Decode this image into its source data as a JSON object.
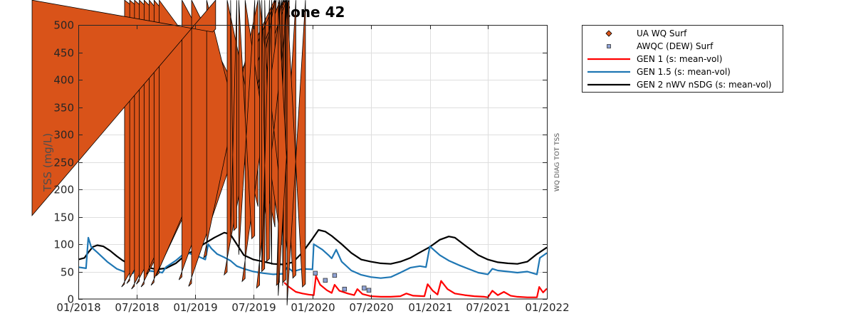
{
  "chart_data": {
    "type": "line",
    "title": "Zone 42",
    "ylabel": "TSS (mg/L)",
    "side_label": "WQ DIAG TOT TSS",
    "xlim": [
      "2018-01-01",
      "2022-01-01"
    ],
    "ylim": [
      0,
      500
    ],
    "grid": true,
    "legend_position": "outside-top-right",
    "x_ticks": [
      "01/2018",
      "07/2018",
      "01/2019",
      "07/2019",
      "01/2020",
      "07/2020",
      "01/2021",
      "07/2021",
      "01/2022"
    ],
    "y_ticks": [
      "0",
      "50",
      "100",
      "150",
      "200",
      "250",
      "300",
      "350",
      "400",
      "450",
      "500"
    ],
    "legend": [
      {
        "label": "UA WQ Surf",
        "marker": "diamond",
        "color": "#d95319"
      },
      {
        "label": "AWQC (DEW) Surf",
        "marker": "square",
        "color": "#7c8fbf"
      },
      {
        "label": "GEN 1 (s: mean-vol)",
        "marker": "line",
        "color": "#ff0000"
      },
      {
        "label": "GEN 1.5 (s: mean-vol)",
        "marker": "line",
        "color": "#1f77b4"
      },
      {
        "label": "GEN 2 nWV nSDG (s: mean-vol)",
        "marker": "line",
        "color": "#000000"
      }
    ],
    "scatter_series": [
      {
        "name": "UA WQ Surf",
        "points": [
          {
            "x": "2018-05-25",
            "y": 22
          },
          {
            "x": "2018-06-10",
            "y": 28
          },
          {
            "x": "2018-06-25",
            "y": 18
          },
          {
            "x": "2018-07-10",
            "y": 27
          },
          {
            "x": "2018-07-25",
            "y": 22
          },
          {
            "x": "2018-08-10",
            "y": 45
          },
          {
            "x": "2018-08-25",
            "y": 25
          },
          {
            "x": "2018-09-10",
            "y": 42
          },
          {
            "x": "2018-11-20",
            "y": 35
          },
          {
            "x": "2018-12-20",
            "y": 23
          },
          {
            "x": "2019-02-05",
            "y": 75
          },
          {
            "x": "2019-03-05",
            "y": 487
          },
          {
            "x": "2019-04-10",
            "y": 44
          },
          {
            "x": "2019-05-10",
            "y": 125
          },
          {
            "x": "2019-06-05",
            "y": 32
          },
          {
            "x": "2019-07-05",
            "y": 110
          },
          {
            "x": "2019-07-20",
            "y": 20
          },
          {
            "x": "2019-08-05",
            "y": 50
          },
          {
            "x": "2019-08-20",
            "y": 68
          },
          {
            "x": "2019-09-20",
            "y": 25
          },
          {
            "x": "2019-10-10",
            "y": 30
          },
          {
            "x": "2019-11-10",
            "y": 38
          },
          {
            "x": "2019-12-10",
            "y": 22
          }
        ]
      },
      {
        "name": "AWQC (DEW) Surf",
        "points": [
          {
            "x": "2020-01-10",
            "y": 47
          },
          {
            "x": "2020-02-10",
            "y": 34
          },
          {
            "x": "2020-03-10",
            "y": 43
          },
          {
            "x": "2020-04-10",
            "y": 18
          },
          {
            "x": "2020-06-10",
            "y": 20
          },
          {
            "x": "2020-06-25",
            "y": 16
          }
        ]
      }
    ],
    "line_series": [
      {
        "name": "GEN 2 nWV nSDG (s: mean-vol)",
        "color": "#000000",
        "points": [
          [
            "2018-01-01",
            72
          ],
          [
            "2018-01-20",
            75
          ],
          [
            "2018-02-01",
            85
          ],
          [
            "2018-02-15",
            95
          ],
          [
            "2018-03-01",
            98
          ],
          [
            "2018-03-20",
            96
          ],
          [
            "2018-04-10",
            88
          ],
          [
            "2018-05-01",
            78
          ],
          [
            "2018-05-20",
            70
          ],
          [
            "2018-06-10",
            63
          ],
          [
            "2018-07-01",
            60
          ],
          [
            "2018-07-20",
            60
          ],
          [
            "2018-08-10",
            57
          ],
          [
            "2018-09-01",
            54
          ],
          [
            "2018-10-01",
            56
          ],
          [
            "2018-11-01",
            65
          ],
          [
            "2018-12-01",
            80
          ],
          [
            "2019-01-01",
            90
          ],
          [
            "2019-02-01",
            102
          ],
          [
            "2019-03-01",
            112
          ],
          [
            "2019-04-01",
            121
          ],
          [
            "2019-04-20",
            118
          ],
          [
            "2019-05-10",
            100
          ],
          [
            "2019-06-01",
            80
          ],
          [
            "2019-07-01",
            72
          ],
          [
            "2019-08-01",
            68
          ],
          [
            "2019-09-01",
            64
          ],
          [
            "2019-10-01",
            63
          ],
          [
            "2019-11-01",
            67
          ],
          [
            "2019-12-01",
            85
          ],
          [
            "2020-01-01",
            110
          ],
          [
            "2020-01-20",
            126
          ],
          [
            "2020-02-10",
            123
          ],
          [
            "2020-03-01",
            115
          ],
          [
            "2020-04-01",
            100
          ],
          [
            "2020-05-01",
            84
          ],
          [
            "2020-06-01",
            72
          ],
          [
            "2020-07-01",
            68
          ],
          [
            "2020-08-01",
            65
          ],
          [
            "2020-09-01",
            64
          ],
          [
            "2020-10-01",
            68
          ],
          [
            "2020-11-01",
            75
          ],
          [
            "2020-12-01",
            85
          ],
          [
            "2021-01-01",
            95
          ],
          [
            "2021-02-01",
            108
          ],
          [
            "2021-03-01",
            114
          ],
          [
            "2021-03-20",
            112
          ],
          [
            "2021-04-20",
            98
          ],
          [
            "2021-06-01",
            80
          ],
          [
            "2021-07-01",
            72
          ],
          [
            "2021-08-01",
            67
          ],
          [
            "2021-09-01",
            65
          ],
          [
            "2021-10-01",
            64
          ],
          [
            "2021-11-01",
            68
          ],
          [
            "2021-12-01",
            82
          ],
          [
            "2022-01-01",
            94
          ]
        ]
      },
      {
        "name": "GEN 1.5 (s: mean-vol)",
        "color": "#1f77b4",
        "points": [
          [
            "2018-01-01",
            58
          ],
          [
            "2018-01-25",
            56
          ],
          [
            "2018-02-01",
            112
          ],
          [
            "2018-02-10",
            95
          ],
          [
            "2018-03-01",
            85
          ],
          [
            "2018-04-01",
            68
          ],
          [
            "2018-05-01",
            55
          ],
          [
            "2018-06-01",
            48
          ],
          [
            "2018-06-20",
            47
          ],
          [
            "2018-07-01",
            62
          ],
          [
            "2018-07-10",
            55
          ],
          [
            "2018-08-01",
            52
          ],
          [
            "2018-09-01",
            50
          ],
          [
            "2018-09-20",
            48
          ],
          [
            "2018-10-01",
            58
          ],
          [
            "2018-11-01",
            70
          ],
          [
            "2018-12-01",
            85
          ],
          [
            "2019-01-01",
            80
          ],
          [
            "2019-02-01",
            72
          ],
          [
            "2019-02-10",
            100
          ],
          [
            "2019-02-20",
            92
          ],
          [
            "2019-03-10",
            82
          ],
          [
            "2019-04-01",
            76
          ],
          [
            "2019-04-20",
            70
          ],
          [
            "2019-05-10",
            60
          ],
          [
            "2019-06-01",
            55
          ],
          [
            "2019-07-01",
            50
          ],
          [
            "2019-08-01",
            47
          ],
          [
            "2019-09-01",
            45
          ],
          [
            "2019-10-01",
            46
          ],
          [
            "2019-10-15",
            58
          ],
          [
            "2019-11-01",
            50
          ],
          [
            "2019-12-01",
            55
          ],
          [
            "2020-01-01",
            54
          ],
          [
            "2020-01-05",
            100
          ],
          [
            "2020-02-01",
            90
          ],
          [
            "2020-02-20",
            80
          ],
          [
            "2020-03-01",
            74
          ],
          [
            "2020-03-15",
            90
          ],
          [
            "2020-04-01",
            68
          ],
          [
            "2020-05-01",
            52
          ],
          [
            "2020-06-01",
            44
          ],
          [
            "2020-07-01",
            40
          ],
          [
            "2020-08-01",
            38
          ],
          [
            "2020-09-01",
            40
          ],
          [
            "2020-10-01",
            48
          ],
          [
            "2020-11-01",
            57
          ],
          [
            "2020-12-01",
            60
          ],
          [
            "2020-12-20",
            58
          ],
          [
            "2021-01-01",
            96
          ],
          [
            "2021-02-01",
            80
          ],
          [
            "2021-03-01",
            70
          ],
          [
            "2021-04-01",
            62
          ],
          [
            "2021-05-01",
            55
          ],
          [
            "2021-06-01",
            48
          ],
          [
            "2021-07-01",
            45
          ],
          [
            "2021-07-15",
            55
          ],
          [
            "2021-08-01",
            52
          ],
          [
            "2021-09-01",
            50
          ],
          [
            "2021-10-01",
            48
          ],
          [
            "2021-11-01",
            50
          ],
          [
            "2021-12-01",
            45
          ],
          [
            "2021-12-10",
            75
          ],
          [
            "2022-01-01",
            84
          ]
        ]
      },
      {
        "name": "GEN 1 (s: mean-vol)",
        "color": "#ff0000",
        "points": [
          [
            "2019-10-05",
            30
          ],
          [
            "2019-10-20",
            22
          ],
          [
            "2019-11-10",
            13
          ],
          [
            "2019-12-01",
            10
          ],
          [
            "2019-12-20",
            8
          ],
          [
            "2020-01-05",
            7
          ],
          [
            "2020-01-12",
            42
          ],
          [
            "2020-01-25",
            26
          ],
          [
            "2020-02-15",
            16
          ],
          [
            "2020-03-01",
            11
          ],
          [
            "2020-03-10",
            26
          ],
          [
            "2020-03-25",
            15
          ],
          [
            "2020-04-20",
            10
          ],
          [
            "2020-05-10",
            7
          ],
          [
            "2020-05-20",
            18
          ],
          [
            "2020-06-05",
            9
          ],
          [
            "2020-07-01",
            5
          ],
          [
            "2020-08-01",
            4
          ],
          [
            "2020-09-01",
            4
          ],
          [
            "2020-10-01",
            5
          ],
          [
            "2020-10-20",
            10
          ],
          [
            "2020-11-10",
            6
          ],
          [
            "2020-12-15",
            5
          ],
          [
            "2020-12-25",
            27
          ],
          [
            "2021-01-10",
            15
          ],
          [
            "2021-01-25",
            8
          ],
          [
            "2021-02-05",
            33
          ],
          [
            "2021-02-25",
            18
          ],
          [
            "2021-03-20",
            10
          ],
          [
            "2021-04-20",
            7
          ],
          [
            "2021-05-20",
            5
          ],
          [
            "2021-06-20",
            4
          ],
          [
            "2021-07-01",
            3
          ],
          [
            "2021-07-15",
            15
          ],
          [
            "2021-08-01",
            7
          ],
          [
            "2021-08-20",
            13
          ],
          [
            "2021-09-10",
            6
          ],
          [
            "2021-10-01",
            4
          ],
          [
            "2021-11-01",
            3
          ],
          [
            "2021-12-01",
            3
          ],
          [
            "2021-12-08",
            22
          ],
          [
            "2021-12-20",
            12
          ],
          [
            "2022-01-01",
            19
          ]
        ]
      }
    ]
  }
}
